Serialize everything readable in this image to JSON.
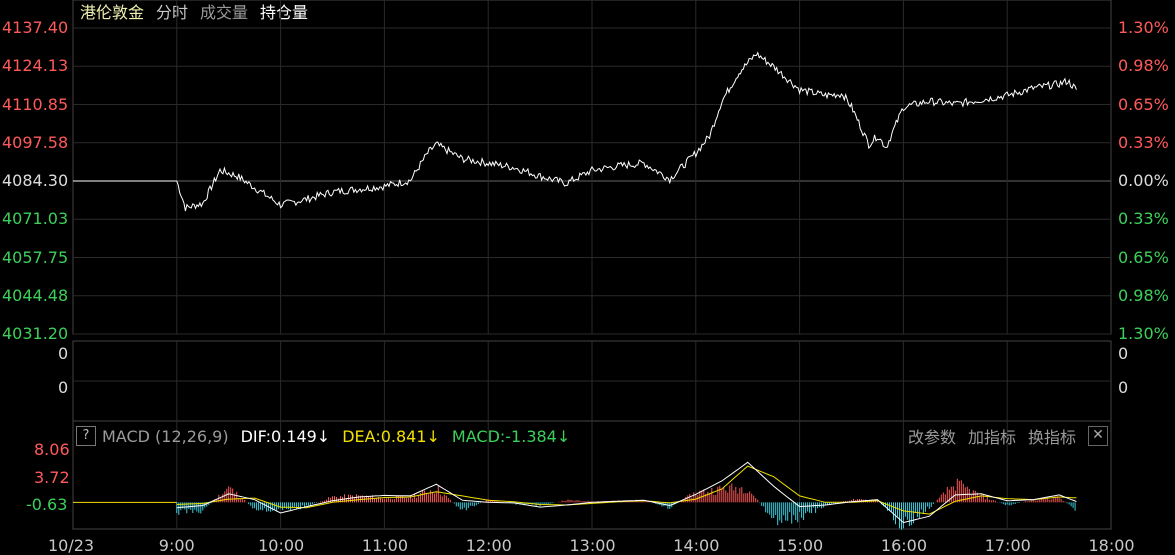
{
  "tabs": [
    {
      "label": "港伦敦金",
      "style": "sel"
    },
    {
      "label": "分时",
      "style": "normal"
    },
    {
      "label": "成交量",
      "style": "dim"
    },
    {
      "label": "持仓量",
      "style": "bold"
    }
  ],
  "price_axis": {
    "left": [
      "4137.40",
      "4124.13",
      "4110.85",
      "4097.58",
      "4084.30",
      "4071.03",
      "4057.75",
      "4044.48",
      "4031.20"
    ],
    "right": [
      "1.30%",
      "0.98%",
      "0.65%",
      "0.33%",
      "0.00%",
      "0.33%",
      "0.65%",
      "0.98%",
      "1.30%"
    ],
    "up_color": "#ff5a5a",
    "down_color": "#3cd05a",
    "mid_color": "#dcdcdc"
  },
  "volume_axis": {
    "left": [
      "0",
      "0"
    ],
    "right": [
      "0",
      "0"
    ]
  },
  "macd": {
    "help": "?",
    "name": "MACD (12,26,9)",
    "dif": "DIF:0.149↓",
    "dea": "DEA:0.841↓",
    "macd": "MACD:-1.384↓",
    "dif_color": "#ffffff",
    "dea_color": "#f0e000",
    "macd_color": "#3cd05a",
    "tools": [
      "改参数",
      "加指标",
      "换指标"
    ],
    "close": "✕",
    "axis": [
      "8.06",
      "3.72",
      "-0.63"
    ]
  },
  "time_axis": [
    "10/23",
    "9:00",
    "10:00",
    "11:00",
    "12:00",
    "13:00",
    "14:00",
    "15:00",
    "16:00",
    "17:00",
    "18:00"
  ],
  "chart_data": [
    {
      "type": "line",
      "title": "",
      "xlabel": "",
      "ylabel": "",
      "ylim": [
        4031.2,
        4137.4
      ],
      "reference": 4084.3,
      "x_range": [
        "08:00",
        "18:00"
      ],
      "x": [
        "08:00",
        "09:00",
        "09:05",
        "09:15",
        "09:25",
        "09:35",
        "09:45",
        "10:00",
        "10:15",
        "10:30",
        "10:45",
        "11:00",
        "11:15",
        "11:25",
        "11:30",
        "11:45",
        "12:00",
        "12:15",
        "12:30",
        "12:45",
        "13:00",
        "13:15",
        "13:30",
        "13:45",
        "14:00",
        "14:08",
        "14:15",
        "14:25",
        "14:35",
        "14:45",
        "15:00",
        "15:15",
        "15:25",
        "15:30",
        "15:40",
        "15:45",
        "15:50",
        "16:00",
        "16:15",
        "16:30",
        "16:45",
        "17:00",
        "17:15",
        "17:30",
        "17:35",
        "17:40"
      ],
      "y": [
        4084.3,
        4084.3,
        4075.0,
        4076.5,
        4088.0,
        4086.0,
        4082.0,
        4076.0,
        4078.0,
        4080.5,
        4081.5,
        4082.5,
        4084.5,
        4094.0,
        4097.0,
        4092.0,
        4090.5,
        4089.0,
        4086.0,
        4083.5,
        4088.0,
        4089.5,
        4090.5,
        4085.0,
        4094.0,
        4100.0,
        4112.0,
        4122.0,
        4128.5,
        4124.0,
        4116.0,
        4114.0,
        4114.5,
        4110.0,
        4097.0,
        4100.0,
        4096.0,
        4110.0,
        4112.0,
        4111.0,
        4112.5,
        4114.0,
        4116.5,
        4118.0,
        4119.0,
        4116.0
      ]
    },
    {
      "type": "bar",
      "title": "MACD (12,26,9)",
      "ylim": [
        -5.0,
        10.0
      ],
      "x": [
        "09:00",
        "09:15",
        "09:30",
        "09:45",
        "10:00",
        "10:15",
        "10:30",
        "10:45",
        "11:00",
        "11:15",
        "11:30",
        "11:45",
        "12:00",
        "12:15",
        "12:30",
        "12:45",
        "13:00",
        "13:15",
        "13:30",
        "13:45",
        "14:00",
        "14:15",
        "14:30",
        "14:45",
        "15:00",
        "15:15",
        "15:30",
        "15:45",
        "16:00",
        "16:15",
        "16:30",
        "16:45",
        "17:00",
        "17:15",
        "17:30",
        "17:40"
      ],
      "macd": [
        -1.8,
        -1.5,
        2.8,
        -1.2,
        -1.5,
        -0.8,
        1.0,
        1.2,
        0.8,
        1.0,
        2.6,
        -1.5,
        0.5,
        -0.3,
        -0.6,
        0.4,
        0.2,
        0.3,
        0.4,
        -1.0,
        1.8,
        2.5,
        2.8,
        -3.5,
        -2.8,
        -0.6,
        0.5,
        0.4,
        -4.5,
        -1.0,
        3.5,
        1.2,
        -0.6,
        0.5,
        0.9,
        -1.4
      ],
      "dif": [
        -1.0,
        -0.6,
        1.6,
        0.5,
        -2.0,
        -0.8,
        0.3,
        1.0,
        1.3,
        1.2,
        3.4,
        0.4,
        0.0,
        -0.1,
        -0.9,
        -0.5,
        0.0,
        0.2,
        0.4,
        -0.6,
        1.5,
        4.0,
        7.5,
        3.0,
        -0.8,
        -0.5,
        0.1,
        0.5,
        -3.8,
        -2.6,
        1.4,
        1.6,
        0.3,
        0.5,
        1.4,
        0.149
      ],
      "dea": [
        -0.4,
        -0.2,
        0.6,
        0.8,
        -0.9,
        -1.0,
        0.0,
        0.5,
        0.9,
        1.0,
        2.0,
        1.2,
        0.4,
        0.1,
        -0.4,
        -0.5,
        -0.2,
        0.1,
        0.3,
        -0.1,
        0.6,
        2.5,
        6.8,
        4.8,
        1.2,
        0.0,
        0.0,
        0.3,
        -1.6,
        -2.2,
        0.2,
        1.2,
        0.7,
        0.5,
        1.0,
        0.841
      ]
    }
  ]
}
